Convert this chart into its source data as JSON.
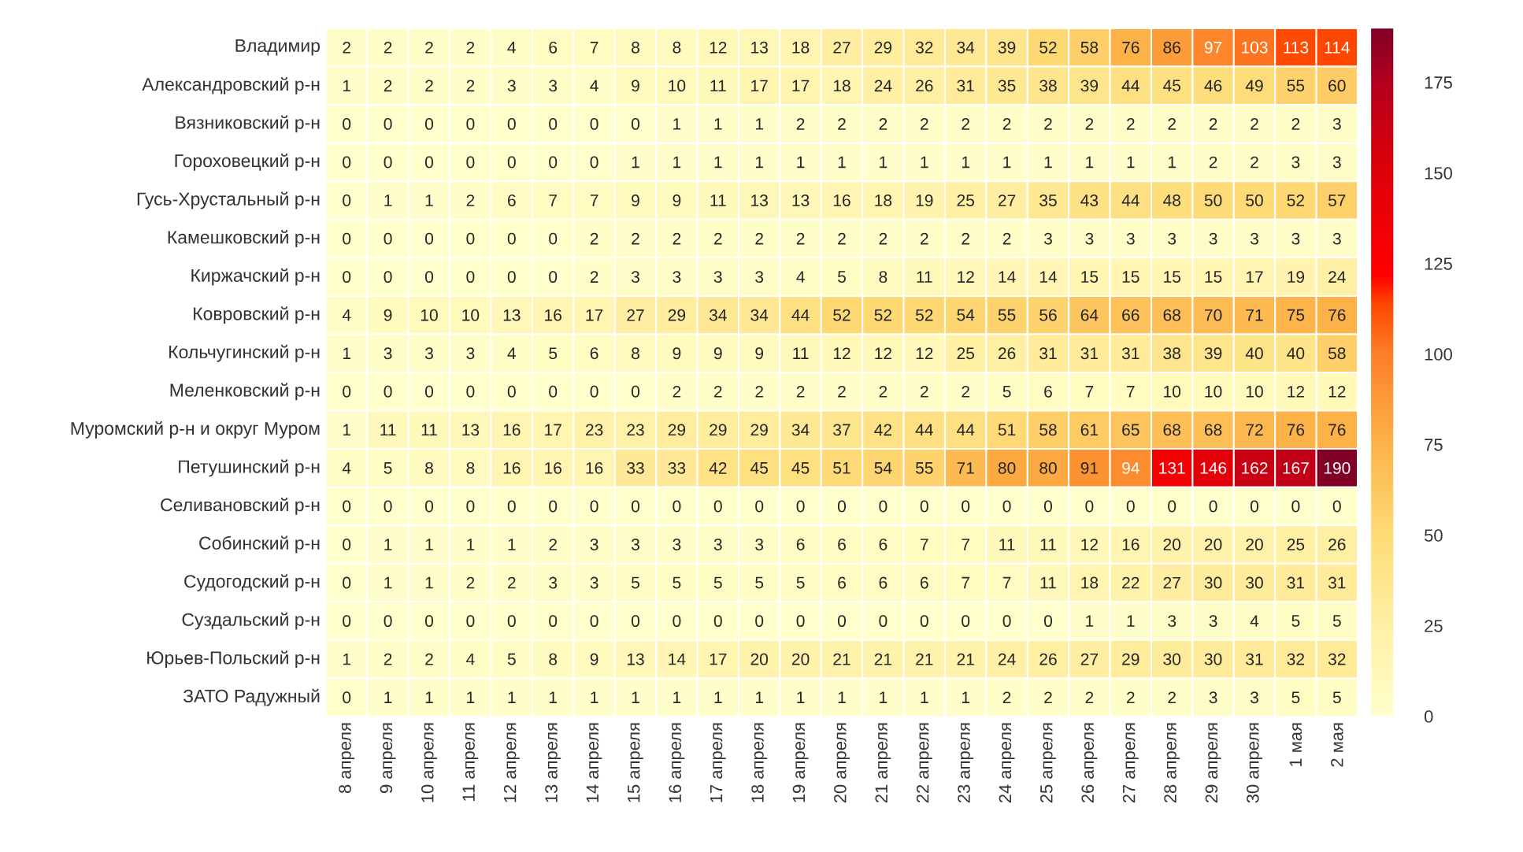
{
  "chart_data": {
    "type": "heatmap",
    "categories": [
      "8 апреля",
      "9 апреля",
      "10 апреля",
      "11 апреля",
      "12 апреля",
      "13 апреля",
      "14 апреля",
      "15 апреля",
      "16 апреля",
      "17 апреля",
      "18 апреля",
      "19 апреля",
      "20 апреля",
      "21 апреля",
      "22 апреля",
      "23 апреля",
      "24 апреля",
      "25 апреля",
      "26 апреля",
      "27 апреля",
      "28 апреля",
      "29 апреля",
      "30 апреля",
      "1 мая",
      "2 мая"
    ],
    "y_categories": [
      "Владимир",
      "Александровский р-н",
      "Вязниковский р-н",
      "Гороховецкий р-н",
      "Гусь-Хрустальный р-н",
      "Камешковский р-н",
      "Киржачский р-н",
      "Ковровский р-н",
      "Кольчугинский р-н",
      "Меленковский р-н",
      "Муромский р-н и округ Муром",
      "Петушинский р-н",
      "Селивановский р-н",
      "Собинский р-н",
      "Судогодский р-н",
      "Суздальский р-н",
      "Юрьев-Польский р-н",
      "ЗАТО Радужный"
    ],
    "cells": [
      [
        2,
        2,
        2,
        2,
        4,
        6,
        7,
        8,
        8,
        12,
        13,
        18,
        27,
        29,
        32,
        34,
        39,
        52,
        58,
        76,
        86,
        97,
        103,
        113,
        114
      ],
      [
        1,
        2,
        2,
        2,
        3,
        3,
        4,
        9,
        10,
        11,
        17,
        17,
        18,
        24,
        26,
        31,
        35,
        38,
        39,
        44,
        45,
        46,
        49,
        55,
        60
      ],
      [
        0,
        0,
        0,
        0,
        0,
        0,
        0,
        0,
        1,
        1,
        1,
        2,
        2,
        2,
        2,
        2,
        2,
        2,
        2,
        2,
        2,
        2,
        2,
        2,
        3
      ],
      [
        0,
        0,
        0,
        0,
        0,
        0,
        0,
        1,
        1,
        1,
        1,
        1,
        1,
        1,
        1,
        1,
        1,
        1,
        1,
        1,
        1,
        2,
        2,
        3,
        3
      ],
      [
        0,
        1,
        1,
        2,
        6,
        7,
        7,
        9,
        9,
        11,
        13,
        13,
        16,
        18,
        19,
        25,
        27,
        35,
        43,
        44,
        48,
        50,
        50,
        52,
        57
      ],
      [
        0,
        0,
        0,
        0,
        0,
        0,
        2,
        2,
        2,
        2,
        2,
        2,
        2,
        2,
        2,
        2,
        2,
        3,
        3,
        3,
        3,
        3,
        3,
        3,
        3
      ],
      [
        0,
        0,
        0,
        0,
        0,
        0,
        2,
        3,
        3,
        3,
        3,
        4,
        5,
        8,
        11,
        12,
        14,
        14,
        15,
        15,
        15,
        15,
        17,
        19,
        24
      ],
      [
        4,
        9,
        10,
        10,
        13,
        16,
        17,
        27,
        29,
        34,
        34,
        44,
        52,
        52,
        52,
        54,
        55,
        56,
        64,
        66,
        68,
        70,
        71,
        75,
        76
      ],
      [
        1,
        3,
        3,
        3,
        4,
        5,
        6,
        8,
        9,
        9,
        9,
        11,
        12,
        12,
        12,
        25,
        26,
        31,
        31,
        31,
        38,
        39,
        40,
        40,
        58
      ],
      [
        0,
        0,
        0,
        0,
        0,
        0,
        0,
        0,
        2,
        2,
        2,
        2,
        2,
        2,
        2,
        2,
        5,
        6,
        7,
        7,
        10,
        10,
        10,
        12,
        12
      ],
      [
        1,
        11,
        11,
        13,
        16,
        17,
        23,
        23,
        29,
        29,
        29,
        34,
        37,
        42,
        44,
        44,
        51,
        58,
        61,
        65,
        68,
        68,
        72,
        76,
        76
      ],
      [
        4,
        5,
        8,
        8,
        16,
        16,
        16,
        33,
        33,
        42,
        45,
        45,
        51,
        54,
        55,
        71,
        80,
        80,
        91,
        94,
        131,
        146,
        162,
        167,
        190
      ],
      [
        0,
        0,
        0,
        0,
        0,
        0,
        0,
        0,
        0,
        0,
        0,
        0,
        0,
        0,
        0,
        0,
        0,
        0,
        0,
        0,
        0,
        0,
        0,
        0,
        0
      ],
      [
        0,
        1,
        1,
        1,
        1,
        2,
        3,
        3,
        3,
        3,
        3,
        6,
        6,
        6,
        7,
        7,
        11,
        11,
        12,
        16,
        20,
        20,
        20,
        25,
        26
      ],
      [
        0,
        1,
        1,
        2,
        2,
        3,
        3,
        5,
        5,
        5,
        5,
        5,
        6,
        6,
        6,
        7,
        7,
        11,
        18,
        22,
        27,
        30,
        30,
        31,
        31
      ],
      [
        0,
        0,
        0,
        0,
        0,
        0,
        0,
        0,
        0,
        0,
        0,
        0,
        0,
        0,
        0,
        0,
        0,
        0,
        1,
        1,
        3,
        3,
        4,
        5,
        5
      ],
      [
        1,
        2,
        2,
        4,
        5,
        8,
        9,
        13,
        14,
        17,
        20,
        20,
        21,
        21,
        21,
        21,
        24,
        26,
        27,
        29,
        30,
        30,
        31,
        32,
        32
      ],
      [
        0,
        1,
        1,
        1,
        1,
        1,
        1,
        1,
        1,
        1,
        1,
        1,
        1,
        1,
        1,
        1,
        2,
        2,
        2,
        2,
        2,
        3,
        3,
        5,
        5
      ]
    ],
    "clim": [
      0,
      190
    ],
    "cticks": [
      0,
      25,
      50,
      75,
      100,
      125,
      150,
      175
    ],
    "data_labels": true
  }
}
